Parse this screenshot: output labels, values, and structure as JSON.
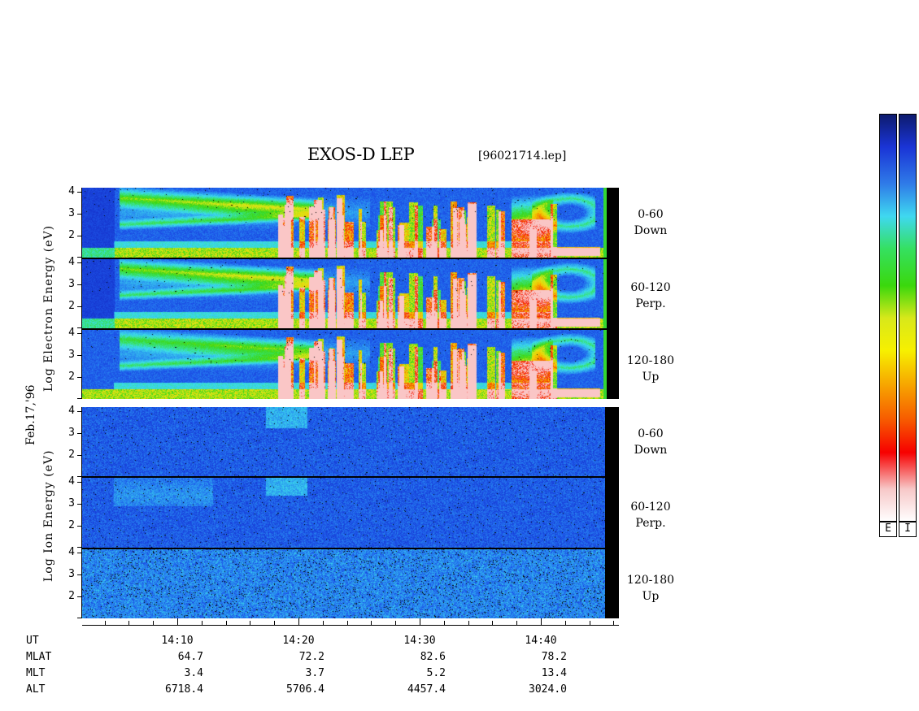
{
  "header": {
    "title": "EXOS-D LEP",
    "file": "[96021714.lep]"
  },
  "date_label": "Feb.17,'96",
  "electron_axis": [
    "Log",
    "Electron",
    "Energy",
    "(eV)"
  ],
  "ion_axis": [
    "Log",
    "Ion",
    "Energy",
    "(eV)"
  ],
  "panel_labels": [
    [
      "0-60",
      "Down"
    ],
    [
      "60-120",
      "Perp."
    ],
    [
      "120-180",
      "Up"
    ],
    [
      "0-60",
      "Down"
    ],
    [
      "60-120",
      "Perp."
    ],
    [
      "120-180",
      "Up"
    ]
  ],
  "y_ticks": [
    "4",
    "3",
    "2"
  ],
  "colorbar": {
    "electron_label": "E",
    "ion_label": "I",
    "colors": [
      "#0d1b6e",
      "#1a34d6",
      "#2f7be8",
      "#3fd8f0",
      "#35e060",
      "#3ad80d",
      "#d8e81a",
      "#f7f000",
      "#f7a000",
      "#f75a00",
      "#f70000",
      "#f7c8c8",
      "#ffffff"
    ]
  },
  "ephemeris": {
    "labels": [
      "UT",
      "MLAT",
      "MLT",
      "ALT"
    ],
    "columns": [
      {
        "UT": "14:10",
        "MLAT": "64.7",
        "MLT": "3.4",
        "ALT": "6718.4"
      },
      {
        "UT": "14:20",
        "MLAT": "72.2",
        "MLT": "3.7",
        "ALT": "5706.4"
      },
      {
        "UT": "14:30",
        "MLAT": "82.6",
        "MLT": "5.2",
        "ALT": "4457.4"
      },
      {
        "UT": "14:40",
        "MLAT": "78.2",
        "MLT": "13.4",
        "ALT": "3024.0"
      }
    ]
  },
  "chart_data": {
    "type": "heatmap",
    "title": "EXOS-D LEP",
    "x_axis": {
      "quantity": "UT",
      "ticks": [
        "14:10",
        "14:20",
        "14:30",
        "14:40"
      ]
    },
    "y_axis": {
      "quantity": "Log Energy (eV)",
      "range": [
        1,
        4.2
      ],
      "ticks": [
        4,
        3,
        2
      ]
    },
    "panels": [
      {
        "species": "Electron",
        "pitch_angle": "0-60",
        "direction": "Down"
      },
      {
        "species": "Electron",
        "pitch_angle": "60-120",
        "direction": "Perp."
      },
      {
        "species": "Electron",
        "pitch_angle": "120-180",
        "direction": "Up"
      },
      {
        "species": "Ion",
        "pitch_angle": "0-60",
        "direction": "Down"
      },
      {
        "species": "Ion",
        "pitch_angle": "60-120",
        "direction": "Perp."
      },
      {
        "species": "Ion",
        "pitch_angle": "120-180",
        "direction": "Up"
      }
    ],
    "colorbar_labels": [
      "E",
      "I"
    ]
  }
}
